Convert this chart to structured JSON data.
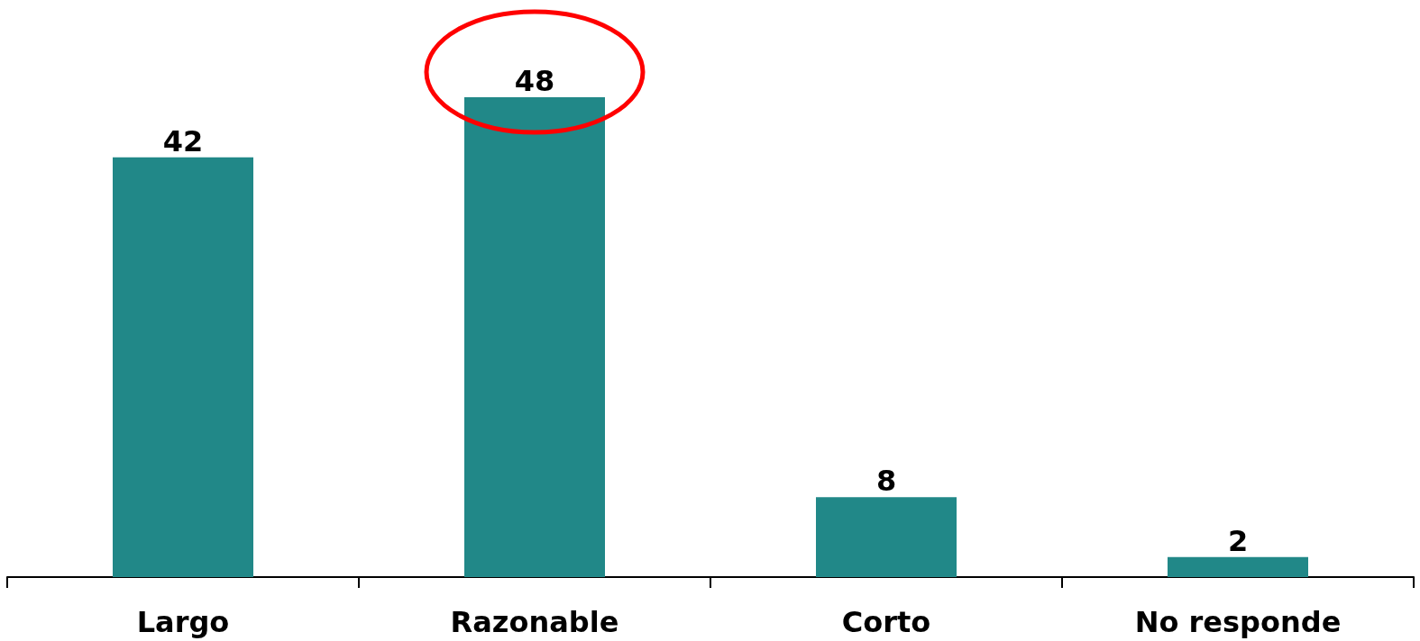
{
  "chart_data": {
    "type": "bar",
    "categories": [
      "Largo",
      "Razonable",
      "Corto",
      "No responde"
    ],
    "values": [
      42,
      48,
      8,
      2
    ],
    "color": "#218888",
    "data_labels": true
  }
}
